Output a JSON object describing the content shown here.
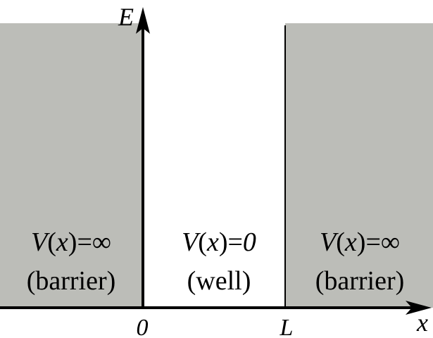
{
  "diagram": {
    "axes": {
      "y_label": "E",
      "x_label": "x",
      "origin_label": "0",
      "well_edge_label": "L"
    },
    "regions": {
      "left": {
        "potential": {
          "v": "V",
          "open": "(",
          "var": "x",
          "close": ")",
          "eq": "=",
          "val": "∞"
        },
        "caption": "(barrier)"
      },
      "middle": {
        "potential": {
          "v": "V",
          "open": "(",
          "var": "x",
          "close": ")",
          "eq": "=",
          "val": "0"
        },
        "caption": "(well)"
      },
      "right": {
        "potential": {
          "v": "V",
          "open": "(",
          "var": "x",
          "close": ")",
          "eq": "=",
          "val": "∞"
        },
        "caption": "(barrier)"
      }
    },
    "colors": {
      "barrier_fill": "#bcbdb8",
      "axis": "#000000",
      "background": "#ffffff"
    }
  }
}
